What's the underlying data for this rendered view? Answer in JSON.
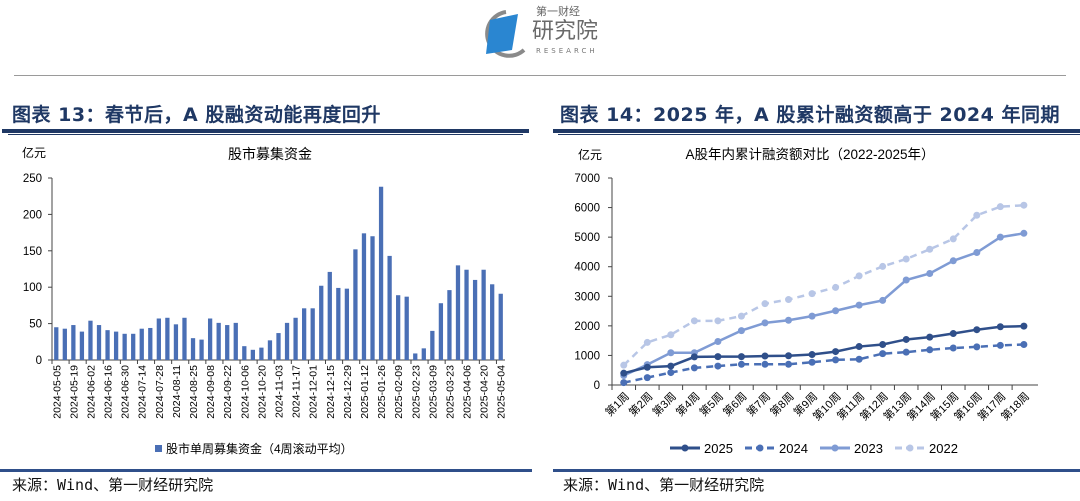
{
  "header": {
    "logo_text_top": "第一财经",
    "logo_text_main": "研究院",
    "logo_text_sub": "RESEARCH"
  },
  "figures": [
    {
      "title": "图表 13：春节后，A 股融资动能再度回升",
      "source": "来源：Wind、第一财经研究院"
    },
    {
      "title": "图表 14：2025 年，A 股累计融资额高于 2024 年同期",
      "source": "来源：Wind、第一财经研究院"
    }
  ],
  "colors": {
    "bar": "#4a6fb5",
    "s2025": "#2f4f8a",
    "s2024": "#4a6fb5",
    "s2023": "#7f9bd4",
    "s2022": "#b8c6e6",
    "title": "#1f3864"
  },
  "chart_data": [
    {
      "type": "bar",
      "title": "股市募集资金",
      "ylabel": "亿元",
      "ylim": [
        0,
        250
      ],
      "yticks": [
        "0",
        "50",
        "100",
        "150",
        "200",
        "250"
      ],
      "legend": "股市单周募集资金（4周滚动平均）",
      "xtick_labels": [
        "2024-05-05",
        "2024-05-19",
        "2024-06-02",
        "2024-06-16",
        "2024-06-30",
        "2024-07-14",
        "2024-07-28",
        "2024-08-11",
        "2024-08-25",
        "2024-09-08",
        "2024-09-22",
        "2024-10-06",
        "2024-10-20",
        "2024-11-03",
        "2024-11-17",
        "2024-12-01",
        "2024-12-15",
        "2024-12-29",
        "2025-01-12",
        "2025-01-26",
        "2025-02-09",
        "2025-02-23",
        "2025-03-09",
        "2025-03-23",
        "2025-04-06",
        "2025-04-20",
        "2025-05-04"
      ],
      "values": [
        45,
        43,
        48,
        39,
        54,
        48,
        41,
        39,
        36,
        36,
        43,
        44,
        57,
        58,
        49,
        58,
        30,
        28,
        57,
        51,
        48,
        51,
        19,
        14,
        17,
        27,
        37,
        51,
        58,
        71,
        71,
        102,
        121,
        99,
        98,
        152,
        174,
        170,
        238,
        143,
        89,
        87,
        9,
        16,
        40,
        78,
        96,
        130,
        124,
        110,
        124,
        104,
        91
      ]
    },
    {
      "type": "line",
      "title": "A股年内累计融资额对比（2022-2025年）",
      "ylabel": "亿元",
      "ylim": [
        0,
        7000
      ],
      "yticks": [
        "0",
        "1000",
        "2000",
        "3000",
        "4000",
        "5000",
        "6000",
        "7000"
      ],
      "categories": [
        "第1周",
        "第2周",
        "第3周",
        "第4周",
        "第5周",
        "第6周",
        "第7周",
        "第8周",
        "第9周",
        "第10周",
        "第11周",
        "第12周",
        "第13周",
        "第14周",
        "第15周",
        "第16周",
        "第17周",
        "第18周"
      ],
      "legend_position": "bottom",
      "series": [
        {
          "name": "2025",
          "style": "solid",
          "color": "#2f4f8a",
          "values": [
            400,
            600,
            640,
            950,
            960,
            960,
            980,
            990,
            1030,
            1130,
            1300,
            1370,
            1540,
            1620,
            1740,
            1870,
            1970,
            1990
          ]
        },
        {
          "name": "2024",
          "style": "dashed",
          "color": "#4a6fb5",
          "values": [
            80,
            250,
            420,
            580,
            640,
            700,
            700,
            700,
            770,
            850,
            870,
            1060,
            1110,
            1190,
            1250,
            1290,
            1340,
            1370
          ]
        },
        {
          "name": "2023",
          "style": "solid",
          "color": "#7f9bd4",
          "values": [
            320,
            690,
            1090,
            1090,
            1470,
            1840,
            2100,
            2190,
            2330,
            2510,
            2700,
            2860,
            3550,
            3770,
            4200,
            4480,
            5000,
            5130
          ]
        },
        {
          "name": "2022",
          "style": "dashed",
          "color": "#b8c6e6",
          "values": [
            670,
            1440,
            1700,
            2170,
            2170,
            2330,
            2750,
            2890,
            3090,
            3300,
            3690,
            4010,
            4260,
            4590,
            4940,
            5740,
            6030,
            6080
          ]
        }
      ]
    }
  ]
}
